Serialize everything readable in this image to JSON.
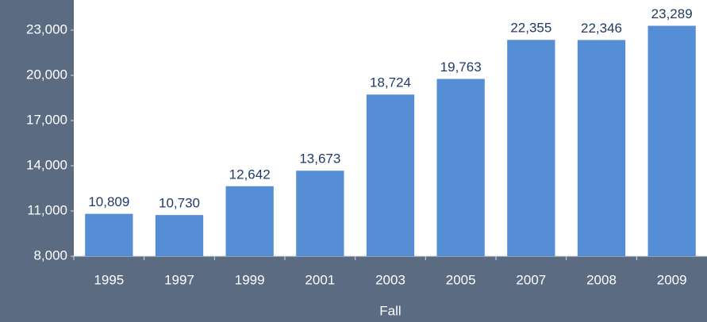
{
  "chart_data": {
    "type": "bar",
    "x_label": "Fall",
    "categories": [
      "1995",
      "1997",
      "1999",
      "2001",
      "2003",
      "2005",
      "2007",
      "2008",
      "2009"
    ],
    "values": [
      10809,
      10730,
      12642,
      13673,
      18724,
      19763,
      22355,
      22346,
      23289
    ],
    "value_labels": [
      "10,809",
      "10,730",
      "12,642",
      "13,673",
      "18,724",
      "19,763",
      "22,355",
      "22,346",
      "23,289"
    ],
    "color": "#558ed5",
    "ylim": [
      8000,
      25000
    ],
    "yticks": [
      {
        "value": 8000,
        "label": "8,000"
      },
      {
        "value": 11000,
        "label": "11,000"
      },
      {
        "value": 14000,
        "label": "14,000"
      },
      {
        "value": 17000,
        "label": "17,000"
      },
      {
        "value": 20000,
        "label": "20,000"
      },
      {
        "value": 23000,
        "label": "23,000"
      }
    ],
    "grid": false
  }
}
